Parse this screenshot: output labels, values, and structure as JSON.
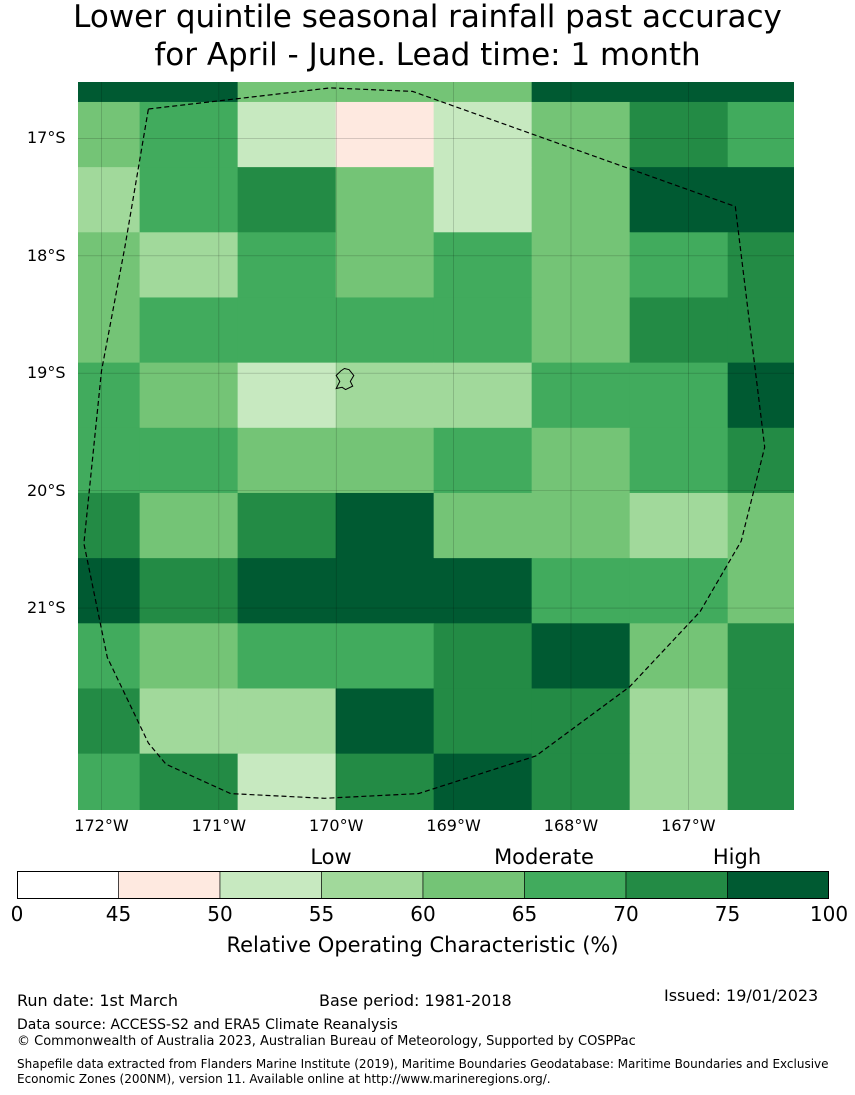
{
  "title": {
    "line1": "Lower quintile seasonal rainfall past accuracy",
    "line2": "for April - June. Lead time: 1 month"
  },
  "colors": {
    "lt45": "#ffffff",
    "45_50": "#fee9e0",
    "50_55": "#c7e9c0",
    "55_60": "#a1d99b",
    "60_65": "#74c476",
    "65_70": "#41ab5d",
    "70_75": "#238b45",
    "75_100": "#005a32"
  },
  "map": {
    "lon_min": -172.2,
    "lon_max": -166.1,
    "lat_max": -16.52,
    "lat_min": -22.72,
    "lon_edges": [
      -172.2,
      -171.675,
      -170.84,
      -170.005,
      -169.17,
      -168.335,
      -167.5,
      -166.665,
      -166.1
    ],
    "lat_edges": [
      -16.52,
      -16.69,
      -17.245,
      -17.8,
      -18.355,
      -18.91,
      -19.465,
      -20.02,
      -20.575,
      -21.13,
      -21.685,
      -22.24,
      -22.72
    ],
    "grid": [
      [
        "75_100",
        "75_100",
        "60_65",
        "60_65",
        "60_65",
        "75_100",
        "75_100",
        "75_100"
      ],
      [
        "60_65",
        "65_70",
        "50_55",
        "45_50",
        "50_55",
        "60_65",
        "70_75",
        "65_70"
      ],
      [
        "55_60",
        "65_70",
        "70_75",
        "60_65",
        "50_55",
        "60_65",
        "75_100",
        "75_100"
      ],
      [
        "60_65",
        "55_60",
        "65_70",
        "60_65",
        "65_70",
        "60_65",
        "65_70",
        "70_75"
      ],
      [
        "60_65",
        "65_70",
        "65_70",
        "65_70",
        "65_70",
        "60_65",
        "70_75",
        "70_75"
      ],
      [
        "65_70",
        "60_65",
        "50_55",
        "55_60",
        "55_60",
        "65_70",
        "65_70",
        "75_100"
      ],
      [
        "65_70",
        "65_70",
        "60_65",
        "60_65",
        "65_70",
        "60_65",
        "65_70",
        "70_75"
      ],
      [
        "70_75",
        "60_65",
        "70_75",
        "75_100",
        "60_65",
        "60_65",
        "55_60",
        "60_65"
      ],
      [
        "75_100",
        "70_75",
        "75_100",
        "75_100",
        "75_100",
        "65_70",
        "65_70",
        "60_65"
      ],
      [
        "65_70",
        "60_65",
        "65_70",
        "65_70",
        "70_75",
        "75_100",
        "60_65",
        "70_75"
      ],
      [
        "70_75",
        "55_60",
        "55_60",
        "75_100",
        "70_75",
        "70_75",
        "55_60",
        "70_75"
      ],
      [
        "65_70",
        "70_75",
        "50_55",
        "70_75",
        "75_100",
        "70_75",
        "55_60",
        "70_75"
      ]
    ],
    "lat_ticks": [
      {
        "value": -17,
        "label": "17°S"
      },
      {
        "value": -18,
        "label": "18°S"
      },
      {
        "value": -19,
        "label": "19°S"
      },
      {
        "value": -20,
        "label": "20°S"
      },
      {
        "value": -21,
        "label": "21°S"
      }
    ],
    "lon_ticks": [
      {
        "value": -172,
        "label": "172°W"
      },
      {
        "value": -171,
        "label": "171°W"
      },
      {
        "value": -170,
        "label": "170°W"
      },
      {
        "value": -169,
        "label": "169°W"
      },
      {
        "value": -168,
        "label": "168°W"
      },
      {
        "value": -167,
        "label": "167°W"
      }
    ],
    "eez_boundary": [
      [
        -171.6,
        -16.75
      ],
      [
        -170.05,
        -16.57
      ],
      [
        -169.35,
        -16.6
      ],
      [
        -166.6,
        -17.58
      ],
      [
        -166.35,
        -19.63
      ],
      [
        -166.55,
        -20.43
      ],
      [
        -166.9,
        -21.03
      ],
      [
        -167.5,
        -21.67
      ],
      [
        -168.3,
        -22.26
      ],
      [
        -169.3,
        -22.58
      ],
      [
        -170.1,
        -22.62
      ],
      [
        -170.9,
        -22.58
      ],
      [
        -171.45,
        -22.33
      ],
      [
        -171.6,
        -22.15
      ],
      [
        -171.95,
        -21.42
      ],
      [
        -172.15,
        -20.45
      ],
      [
        -172.0,
        -18.98
      ],
      [
        -171.8,
        -17.92
      ],
      [
        -171.6,
        -16.75
      ]
    ],
    "island": [
      [
        -169.93,
        -18.96
      ],
      [
        -169.89,
        -18.97
      ],
      [
        -169.85,
        -19.02
      ],
      [
        -169.88,
        -19.07
      ],
      [
        -169.86,
        -19.11
      ],
      [
        -169.92,
        -19.14
      ],
      [
        -169.95,
        -19.12
      ],
      [
        -170.0,
        -19.13
      ],
      [
        -169.97,
        -19.07
      ],
      [
        -170.0,
        -19.02
      ],
      [
        -169.96,
        -18.98
      ],
      [
        -169.93,
        -18.96
      ]
    ]
  },
  "colorbar": {
    "bins": [
      {
        "from": 0,
        "to": 45,
        "key": "lt45"
      },
      {
        "from": 45,
        "to": 50,
        "key": "45_50"
      },
      {
        "from": 50,
        "to": 55,
        "key": "50_55"
      },
      {
        "from": 55,
        "to": 60,
        "key": "55_60"
      },
      {
        "from": 60,
        "to": 65,
        "key": "60_65"
      },
      {
        "from": 65,
        "to": 70,
        "key": "65_70"
      },
      {
        "from": 70,
        "to": 75,
        "key": "70_75"
      },
      {
        "from": 75,
        "to": 100,
        "key": "75_100"
      }
    ],
    "ticks": [
      "0",
      "45",
      "50",
      "55",
      "60",
      "65",
      "70",
      "75",
      "100"
    ],
    "categories": {
      "low": "Low",
      "moderate": "Moderate",
      "high": "High"
    },
    "label": "Relative Operating Characteristic (%)"
  },
  "footer": {
    "run_date": "Run date: 1st March",
    "base_period": "Base period: 1981-2018",
    "issued": "Issued: 19/01/2023",
    "data_source": "Data source: ACCESS-S2 and ERA5 Climate Reanalysis",
    "copyright": "© Commonwealth of Australia 2023, Australian Bureau of Meteorology, Supported by COSPPac",
    "shapefile": "Shapefile data extracted from Flanders Marine Institute (2019), Maritime Boundaries Geodatabase: Maritime Boundaries and Exclusive Economic Zones (200NM), version 11. Available online at http://www.marineregions.org/."
  }
}
